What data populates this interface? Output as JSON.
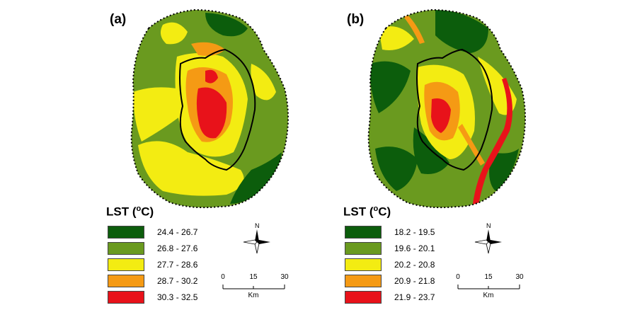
{
  "panels": [
    {
      "id": "a",
      "label": "(a)",
      "legend_title": "LST (",
      "legend_sup": "o",
      "legend_unit": "C)",
      "classes": [
        {
          "range": "24.4 - 26.7",
          "color": "#0c5d0c"
        },
        {
          "range": "26.8 - 27.6",
          "color": "#6a9a1f"
        },
        {
          "range": "27.7 - 28.6",
          "color": "#f3ec12"
        },
        {
          "range": "28.7 - 30.2",
          "color": "#f59a14"
        },
        {
          "range": "30.3 - 32.5",
          "color": "#e8121a"
        }
      ]
    },
    {
      "id": "b",
      "label": "(b)",
      "legend_title": "LST (",
      "legend_sup": "o",
      "legend_unit": "C)",
      "classes": [
        {
          "range": "18.2 - 19.5",
          "color": "#0c5d0c"
        },
        {
          "range": "19.6 - 20.1",
          "color": "#6a9a1f"
        },
        {
          "range": "20.2 - 20.8",
          "color": "#f3ec12"
        },
        {
          "range": "20.9 - 21.8",
          "color": "#f59a14"
        },
        {
          "range": "21.9 - 23.7",
          "color": "#e8121a"
        }
      ]
    }
  ],
  "north_label": "N",
  "scale": {
    "ticks": [
      "0",
      "15",
      "30"
    ],
    "unit": "Km"
  }
}
